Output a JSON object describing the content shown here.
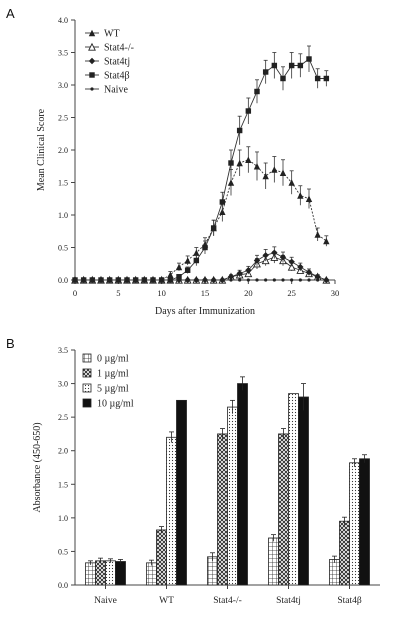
{
  "figure": {
    "panel_a_letter": "A",
    "panel_b_letter": "B"
  },
  "chart_data": [
    {
      "type": "line",
      "panel": "A",
      "xlabel": "Days after Immunization",
      "ylabel": "Mean Clinical Score",
      "xlim": [
        0,
        30
      ],
      "ylim": [
        0,
        4.0
      ],
      "xticks": [
        0,
        5,
        10,
        15,
        20,
        25,
        30
      ],
      "yticks": [
        0.0,
        0.5,
        1.0,
        1.5,
        2.0,
        2.5,
        3.0,
        3.5,
        4.0
      ],
      "ytick_labels": [
        "0.0",
        "0.5",
        "1.0",
        "1.5",
        "2.0",
        "2.5",
        "3.0",
        "3.5",
        "4.0"
      ],
      "legend_position": "top-left",
      "grid": false,
      "series": [
        {
          "name": "WT",
          "marker": "triangle-up",
          "x": [
            0,
            1,
            2,
            3,
            4,
            5,
            6,
            7,
            8,
            9,
            10,
            11,
            12,
            13,
            14,
            15,
            16,
            17,
            18,
            19,
            20,
            21,
            22,
            23,
            24,
            25,
            26,
            27,
            28,
            29
          ],
          "y": [
            0,
            0,
            0,
            0,
            0,
            0,
            0,
            0,
            0,
            0,
            0,
            0.08,
            0.2,
            0.3,
            0.42,
            0.55,
            0.8,
            1.05,
            1.5,
            1.8,
            1.85,
            1.75,
            1.6,
            1.7,
            1.65,
            1.5,
            1.3,
            1.25,
            0.7,
            0.6
          ],
          "err": [
            0,
            0,
            0,
            0,
            0,
            0,
            0,
            0,
            0,
            0,
            0,
            0.05,
            0.06,
            0.07,
            0.08,
            0.1,
            0.12,
            0.15,
            0.2,
            0.2,
            0.2,
            0.22,
            0.2,
            0.2,
            0.2,
            0.18,
            0.15,
            0.15,
            0.1,
            0.08
          ]
        },
        {
          "name": "Stat4-/-",
          "marker": "triangle-up-open",
          "x": [
            0,
            1,
            2,
            3,
            4,
            5,
            6,
            7,
            8,
            9,
            10,
            11,
            12,
            13,
            14,
            15,
            16,
            17,
            18,
            19,
            20,
            21,
            22,
            23,
            24,
            25,
            26,
            27,
            28,
            29
          ],
          "y": [
            0,
            0,
            0,
            0,
            0,
            0,
            0,
            0,
            0,
            0,
            0,
            0,
            0,
            0,
            0,
            0,
            0,
            0,
            0.05,
            0.08,
            0.1,
            0.25,
            0.3,
            0.35,
            0.3,
            0.2,
            0.15,
            0.1,
            0.05,
            0
          ],
          "err": [
            0,
            0,
            0,
            0,
            0,
            0,
            0,
            0,
            0,
            0,
            0,
            0,
            0,
            0,
            0,
            0,
            0,
            0,
            0.03,
            0.04,
            0.05,
            0.08,
            0.08,
            0.09,
            0.08,
            0.06,
            0.05,
            0.04,
            0.03,
            0
          ]
        },
        {
          "name": "Stat4tj",
          "marker": "diamond",
          "x": [
            0,
            1,
            2,
            3,
            4,
            5,
            6,
            7,
            8,
            9,
            10,
            11,
            12,
            13,
            14,
            15,
            16,
            17,
            18,
            19,
            20,
            21,
            22,
            23,
            24,
            25,
            26,
            27,
            28,
            29
          ],
          "y": [
            0,
            0,
            0,
            0,
            0,
            0,
            0,
            0,
            0,
            0,
            0,
            0,
            0,
            0,
            0,
            0,
            0,
            0,
            0.05,
            0.1,
            0.15,
            0.3,
            0.38,
            0.42,
            0.35,
            0.28,
            0.2,
            0.12,
            0.05,
            0
          ],
          "err": [
            0,
            0,
            0,
            0,
            0,
            0,
            0,
            0,
            0,
            0,
            0,
            0,
            0,
            0,
            0,
            0,
            0,
            0,
            0.03,
            0.05,
            0.06,
            0.08,
            0.09,
            0.09,
            0.08,
            0.07,
            0.06,
            0.05,
            0.03,
            0
          ]
        },
        {
          "name": "Stat4β",
          "marker": "square",
          "x": [
            0,
            1,
            2,
            3,
            4,
            5,
            6,
            7,
            8,
            9,
            10,
            11,
            12,
            13,
            14,
            15,
            16,
            17,
            18,
            19,
            20,
            21,
            22,
            23,
            24,
            25,
            26,
            27,
            28,
            29
          ],
          "y": [
            0,
            0,
            0,
            0,
            0,
            0,
            0,
            0,
            0,
            0,
            0,
            0,
            0.05,
            0.15,
            0.3,
            0.5,
            0.8,
            1.2,
            1.8,
            2.3,
            2.6,
            2.9,
            3.2,
            3.3,
            3.1,
            3.3,
            3.3,
            3.4,
            3.1,
            3.1
          ],
          "err": [
            0,
            0,
            0,
            0,
            0,
            0,
            0,
            0,
            0,
            0,
            0,
            0,
            0.03,
            0.05,
            0.08,
            0.1,
            0.12,
            0.15,
            0.2,
            0.22,
            0.2,
            0.18,
            0.18,
            0.2,
            0.18,
            0.2,
            0.18,
            0.2,
            0.15,
            0.12
          ]
        },
        {
          "name": "Naive",
          "marker": "cross",
          "x": [
            0,
            1,
            2,
            3,
            4,
            5,
            6,
            7,
            8,
            9,
            10,
            11,
            12,
            13,
            14,
            15,
            16,
            17,
            18,
            19,
            20,
            21,
            22,
            23,
            24,
            25,
            26,
            27,
            28,
            29
          ],
          "y": [
            0,
            0,
            0,
            0,
            0,
            0,
            0,
            0,
            0,
            0,
            0,
            0,
            0,
            0,
            0,
            0,
            0,
            0,
            0,
            0,
            0,
            0,
            0,
            0,
            0,
            0,
            0,
            0,
            0,
            0
          ],
          "err": []
        }
      ]
    },
    {
      "type": "bar",
      "panel": "B",
      "xlabel": "",
      "ylabel": "Absorbance (450-650)",
      "ylim": [
        0,
        3.5
      ],
      "yticks": [
        0.0,
        0.5,
        1.0,
        1.5,
        2.0,
        2.5,
        3.0,
        3.5
      ],
      "ytick_labels": [
        "0.0",
        "0.5",
        "1.0",
        "1.5",
        "2.0",
        "2.5",
        "3.0",
        "3.5"
      ],
      "categories": [
        "Naive",
        "WT",
        "Stat4-/-",
        "Stat4tj",
        "Stat4β"
      ],
      "legend_position": "top-left",
      "series": [
        {
          "name": "0 µg/ml",
          "pattern": "grid",
          "values": [
            0.33,
            0.33,
            0.42,
            0.7,
            0.38
          ],
          "err": [
            0.03,
            0.04,
            0.06,
            0.05,
            0.05
          ]
        },
        {
          "name": "1 µg/ml",
          "pattern": "crosshatch",
          "values": [
            0.36,
            0.82,
            2.25,
            2.25,
            0.95
          ],
          "err": [
            0.04,
            0.05,
            0.08,
            0.08,
            0.06
          ]
        },
        {
          "name": "5 µg/ml",
          "pattern": "dots",
          "values": [
            0.36,
            2.2,
            2.65,
            2.85,
            1.82
          ],
          "err": [
            0.03,
            0.08,
            0.1,
            0.0,
            0.06
          ]
        },
        {
          "name": "10 µg/ml",
          "pattern": "solid",
          "values": [
            0.35,
            2.75,
            3.0,
            2.8,
            1.88
          ],
          "err": [
            0.03,
            0.0,
            0.1,
            0.2,
            0.06
          ]
        }
      ]
    }
  ]
}
